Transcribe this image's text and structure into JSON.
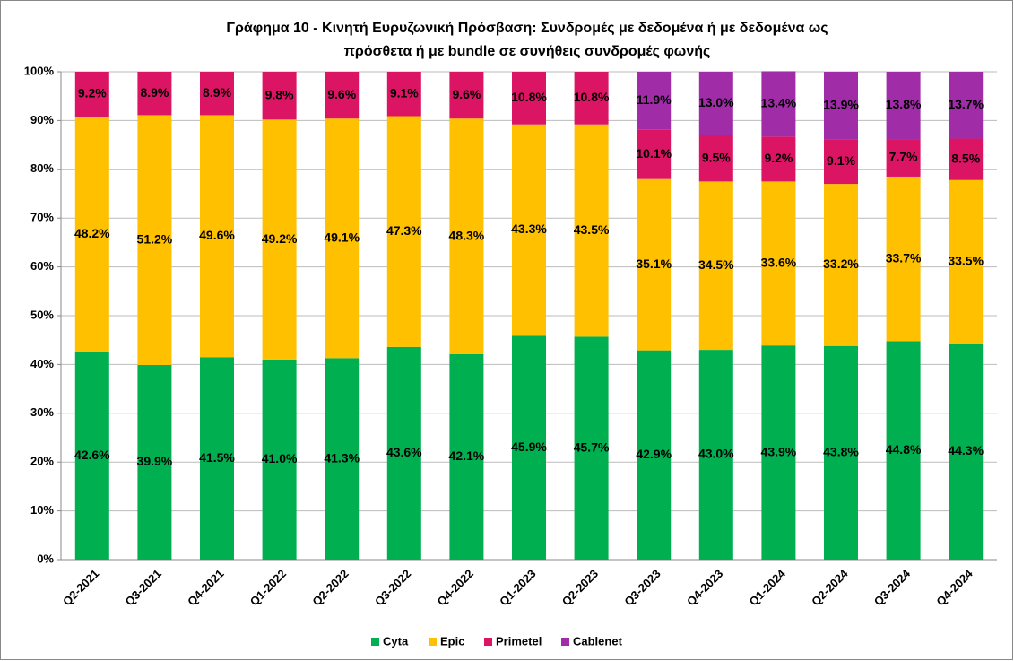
{
  "chart_data": {
    "type": "stacked_bar",
    "title": [
      "Γράφημα 10 - Κινητή Ευρυζωνική Πρόσβαση: Συνδρομές με δεδομένα ή με δεδομένα ως",
      "πρόσθετα ή με bundle σε συνήθεις συνδρομές φωνής"
    ],
    "categories": [
      "Q2-2021",
      "Q3-2021",
      "Q4-2021",
      "Q1-2022",
      "Q2-2022",
      "Q3-2022",
      "Q4-2022",
      "Q1-2023",
      "Q2-2023",
      "Q3-2023",
      "Q4-2023",
      "Q1-2024",
      "Q2-2024",
      "Q3-2024",
      "Q4-2024"
    ],
    "series": [
      {
        "name": "Cyta",
        "color": "#00b050",
        "values": [
          42.6,
          39.9,
          41.5,
          41.0,
          41.3,
          43.6,
          42.1,
          45.9,
          45.7,
          42.9,
          43.0,
          43.9,
          43.8,
          44.8,
          44.3
        ],
        "value_labels": [
          "42.6%",
          "39.9%",
          "41.5%",
          "41.0%",
          "41.3%",
          "43.6%",
          "42.1%",
          "45.9%",
          "45.7%",
          "42.9%",
          "43.0%",
          "43.9%",
          "43.8%",
          "44.8%",
          "44.3%"
        ]
      },
      {
        "name": "Epic",
        "color": "#ffc000",
        "values": [
          48.2,
          51.2,
          49.6,
          49.2,
          49.1,
          47.3,
          48.3,
          43.3,
          43.5,
          35.1,
          34.5,
          33.6,
          33.2,
          33.7,
          33.5
        ],
        "value_labels": [
          "48.2%",
          "51.2%",
          "49.6%",
          "49.2%",
          "49.1%",
          "47.3%",
          "48.3%",
          "43.3%",
          "43.5%",
          "35.1%",
          "34.5%",
          "33.6%",
          "33.2%",
          "33.7%",
          "33.5%"
        ]
      },
      {
        "name": "Primetel",
        "color": "#dc1464",
        "values": [
          9.2,
          8.9,
          8.9,
          9.8,
          9.6,
          9.1,
          9.6,
          10.8,
          10.8,
          10.1,
          9.5,
          9.2,
          9.1,
          7.7,
          8.5
        ],
        "value_labels": [
          "9.2%",
          "8.9%",
          "8.9%",
          "9.8%",
          "9.6%",
          "9.1%",
          "9.6%",
          "10.8%",
          "10.8%",
          "10.1%",
          "9.5%",
          "9.2%",
          "9.1%",
          "7.7%",
          "8.5%"
        ]
      },
      {
        "name": "Cablenet",
        "color": "#a02ca8",
        "values": [
          null,
          null,
          null,
          null,
          null,
          null,
          null,
          null,
          null,
          11.9,
          13.0,
          13.4,
          13.9,
          13.8,
          13.7
        ],
        "value_labels": [
          null,
          null,
          null,
          null,
          null,
          null,
          null,
          null,
          null,
          "11.9%",
          "13.0%",
          "13.4%",
          "13.9%",
          "13.8%",
          "13.7%"
        ]
      }
    ],
    "ylim": [
      0,
      100
    ],
    "yticks": [
      {
        "value": 0,
        "label": "0%"
      },
      {
        "value": 10,
        "label": "10%"
      },
      {
        "value": 20,
        "label": "20%"
      },
      {
        "value": 30,
        "label": "30%"
      },
      {
        "value": 40,
        "label": "40%"
      },
      {
        "value": 50,
        "label": "50%"
      },
      {
        "value": 60,
        "label": "60%"
      },
      {
        "value": 70,
        "label": "70%"
      },
      {
        "value": 80,
        "label": "80%"
      },
      {
        "value": 90,
        "label": "90%"
      },
      {
        "value": 100,
        "label": "100%"
      }
    ],
    "grid": true,
    "legend": "bottom"
  }
}
